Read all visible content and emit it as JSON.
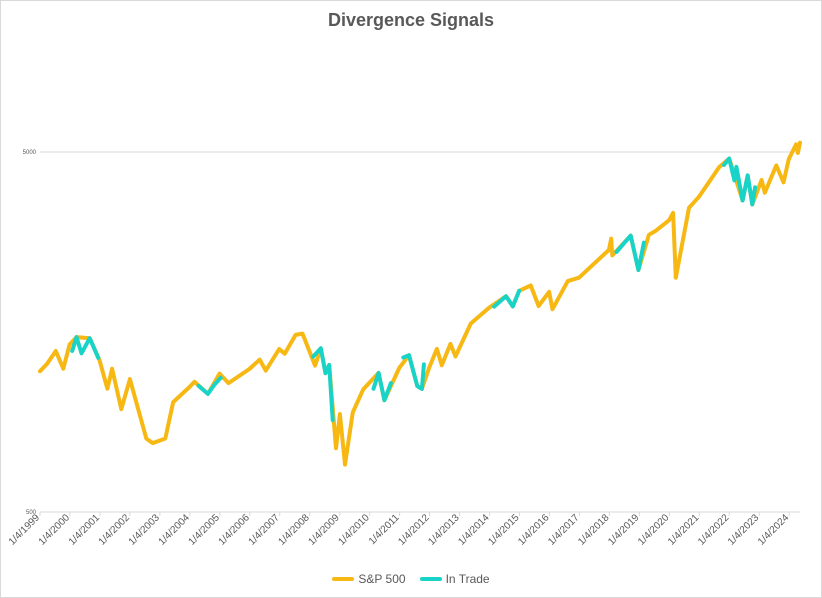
{
  "chart_data": {
    "type": "line",
    "title": "Divergence Signals",
    "xlabel": "",
    "ylabel": "",
    "y_scale": "log",
    "ylim": [
      500,
      5000
    ],
    "ytick_labels": [
      "500",
      "5000"
    ],
    "xtick_labels": [
      "1/4/1999",
      "1/4/2000",
      "1/4/2001",
      "1/4/2002",
      "1/4/2003",
      "1/4/2004",
      "1/4/2005",
      "1/4/2006",
      "1/4/2007",
      "1/4/2008",
      "1/4/2009",
      "1/4/2010",
      "1/4/2011",
      "1/4/2012",
      "1/4/2013",
      "1/4/2014",
      "1/4/2015",
      "1/4/2016",
      "1/4/2017",
      "1/4/2018",
      "1/4/2019",
      "1/4/2020",
      "1/4/2021",
      "1/4/2022",
      "1/4/2023",
      "1/4/2024"
    ],
    "xlim": [
      "1999-01-04",
      "2024-05-15"
    ],
    "grid": true,
    "legend_position": "bottom",
    "colors": {
      "sp500": "#F7B813",
      "in_trade": "#18D3C8",
      "grid": "#d9d9d9"
    },
    "series": [
      {
        "name": "S&P 500",
        "color": "#F7B813",
        "points": [
          [
            "1999-01-04",
            1230
          ],
          [
            "1999-04-01",
            1290
          ],
          [
            "1999-07-15",
            1400
          ],
          [
            "1999-10-15",
            1250
          ],
          [
            "1999-12-31",
            1460
          ],
          [
            "2000-03-24",
            1530
          ],
          [
            "2000-09-01",
            1520
          ],
          [
            "2000-12-29",
            1320
          ],
          [
            "2001-04-04",
            1100
          ],
          [
            "2001-06-01",
            1250
          ],
          [
            "2001-09-21",
            965
          ],
          [
            "2002-01-04",
            1170
          ],
          [
            "2002-07-23",
            800
          ],
          [
            "2002-10-09",
            777
          ],
          [
            "2003-03-11",
            800
          ],
          [
            "2003-06-16",
            1010
          ],
          [
            "2003-12-31",
            1112
          ],
          [
            "2004-03-01",
            1150
          ],
          [
            "2004-08-12",
            1064
          ],
          [
            "2004-12-31",
            1212
          ],
          [
            "2005-04-20",
            1140
          ],
          [
            "2005-12-30",
            1248
          ],
          [
            "2006-05-05",
            1325
          ],
          [
            "2006-07-18",
            1235
          ],
          [
            "2006-12-29",
            1418
          ],
          [
            "2007-03-05",
            1375
          ],
          [
            "2007-07-16",
            1552
          ],
          [
            "2007-10-09",
            1565
          ],
          [
            "2008-03-10",
            1275
          ],
          [
            "2008-05-19",
            1425
          ],
          [
            "2008-07-15",
            1215
          ],
          [
            "2008-08-29",
            1280
          ],
          [
            "2008-11-20",
            752
          ],
          [
            "2009-01-06",
            935
          ],
          [
            "2009-03-09",
            677
          ],
          [
            "2009-06-12",
            946
          ],
          [
            "2009-10-19",
            1097
          ],
          [
            "2010-04-23",
            1217
          ],
          [
            "2010-07-02",
            1022
          ],
          [
            "2010-12-31",
            1257
          ],
          [
            "2011-04-29",
            1363
          ],
          [
            "2011-08-08",
            1119
          ],
          [
            "2011-10-03",
            1099
          ],
          [
            "2011-12-30",
            1257
          ],
          [
            "2012-04-02",
            1419
          ],
          [
            "2012-06-01",
            1278
          ],
          [
            "2012-09-14",
            1465
          ],
          [
            "2012-11-15",
            1353
          ],
          [
            "2013-05-21",
            1669
          ],
          [
            "2013-12-31",
            1848
          ],
          [
            "2014-07-24",
            1988
          ],
          [
            "2014-10-15",
            1862
          ],
          [
            "2014-12-31",
            2058
          ],
          [
            "2015-05-21",
            2130
          ],
          [
            "2015-08-25",
            1867
          ],
          [
            "2015-12-31",
            2043
          ],
          [
            "2016-02-11",
            1829
          ],
          [
            "2016-08-15",
            2190
          ],
          [
            "2016-12-30",
            2238
          ],
          [
            "2017-12-29",
            2673
          ],
          [
            "2018-01-26",
            2872
          ],
          [
            "2018-02-08",
            2581
          ],
          [
            "2018-09-20",
            2930
          ],
          [
            "2018-12-24",
            2351
          ],
          [
            "2019-04-30",
            2945
          ],
          [
            "2019-07-26",
            3025
          ],
          [
            "2019-12-31",
            3230
          ],
          [
            "2020-02-19",
            3386
          ],
          [
            "2020-03-23",
            2237
          ],
          [
            "2020-08-31",
            3500
          ],
          [
            "2020-12-31",
            3756
          ],
          [
            "2021-09-02",
            4536
          ],
          [
            "2022-01-03",
            4796
          ],
          [
            "2022-06-16",
            3666
          ],
          [
            "2022-08-16",
            4305
          ],
          [
            "2022-10-12",
            3577
          ],
          [
            "2023-02-02",
            4179
          ],
          [
            "2023-03-13",
            3855
          ],
          [
            "2023-07-31",
            4588
          ],
          [
            "2023-10-27",
            4117
          ],
          [
            "2023-12-29",
            4770
          ],
          [
            "2024-03-28",
            5254
          ],
          [
            "2024-04-19",
            4967
          ],
          [
            "2024-05-15",
            5308
          ]
        ]
      },
      {
        "name": "In Trade",
        "color": "#18D3C8",
        "segments": [
          [
            [
              "2000-02-01",
              1400
            ],
            [
              "2000-03-24",
              1530
            ],
            [
              "2000-05-24",
              1380
            ],
            [
              "2000-09-01",
              1520
            ],
            [
              "2000-12-15",
              1340
            ]
          ],
          [
            [
              "2004-04-20",
              1120
            ],
            [
              "2004-08-12",
              1064
            ],
            [
              "2004-11-01",
              1130
            ],
            [
              "2005-01-15",
              1180
            ]
          ],
          [
            [
              "2008-02-15",
              1350
            ],
            [
              "2008-05-19",
              1425
            ],
            [
              "2008-07-15",
              1215
            ],
            [
              "2008-08-29",
              1280
            ],
            [
              "2008-10-10",
              900
            ]
          ],
          [
            [
              "2010-02-20",
              1100
            ],
            [
              "2010-04-23",
              1217
            ],
            [
              "2010-07-02",
              1022
            ],
            [
              "2010-09-20",
              1140
            ]
          ],
          [
            [
              "2011-02-18",
              1343
            ],
            [
              "2011-04-29",
              1363
            ],
            [
              "2011-08-08",
              1119
            ],
            [
              "2011-10-03",
              1099
            ],
            [
              "2011-10-27",
              1285
            ]
          ],
          [
            [
              "2014-03-01",
              1860
            ],
            [
              "2014-07-24",
              1988
            ],
            [
              "2014-10-15",
              1862
            ],
            [
              "2014-12-31",
              2058
            ]
          ],
          [
            [
              "2018-04-01",
              2640
            ],
            [
              "2018-09-20",
              2930
            ],
            [
              "2018-12-24",
              2351
            ],
            [
              "2019-03-01",
              2800
            ]
          ],
          [
            [
              "2021-11-01",
              4600
            ],
            [
              "2022-01-03",
              4796
            ],
            [
              "2022-03-08",
              4170
            ],
            [
              "2022-04-01",
              4545
            ],
            [
              "2022-06-16",
              3666
            ],
            [
              "2022-08-16",
              4305
            ],
            [
              "2022-10-12",
              3577
            ],
            [
              "2022-11-15",
              3990
            ]
          ]
        ]
      }
    ]
  }
}
